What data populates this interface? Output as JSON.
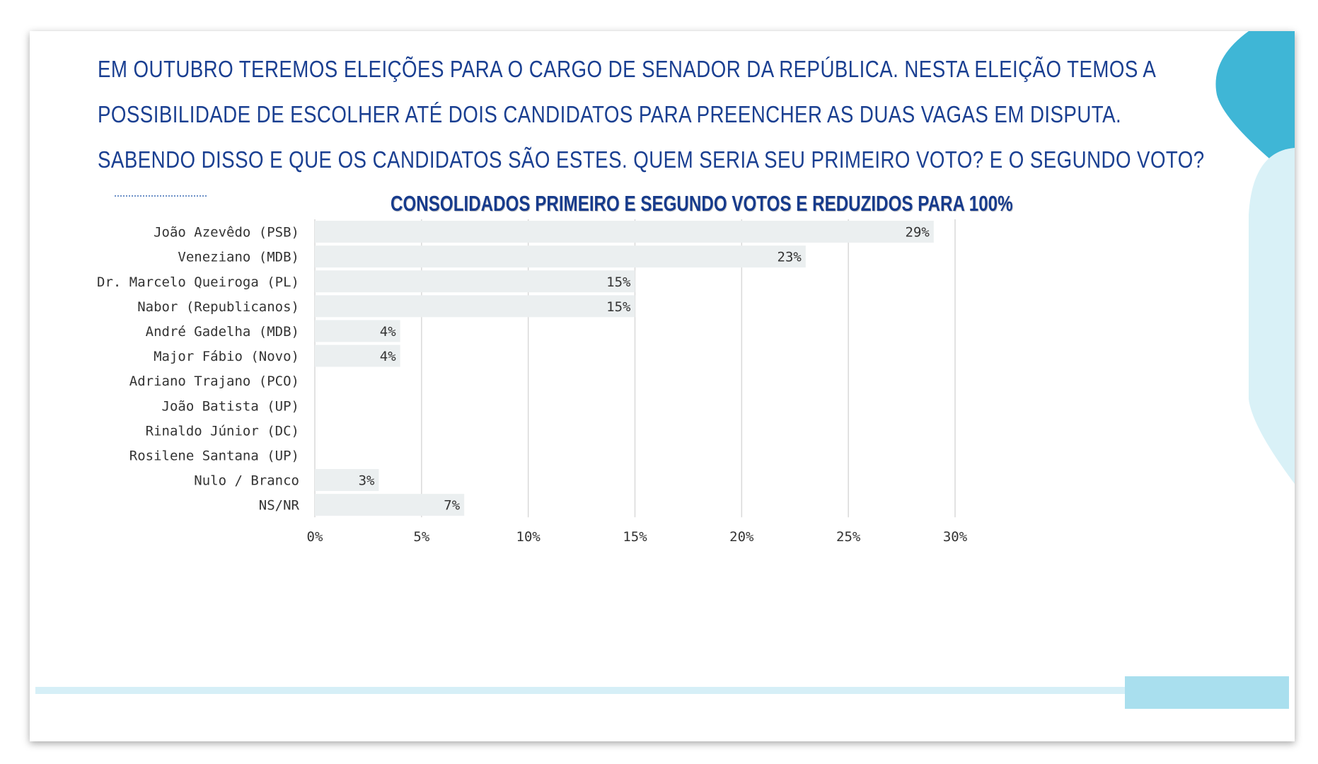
{
  "question_lines": [
    "EM OUTUBRO TEREMOS ELEIÇÕES PARA O CARGO DE SENADOR DA REPÚBLICA. NESTA ELEIÇÃO TEMOS A",
    "POSSIBILIDADE DE ESCOLHER ATÉ DOIS CANDIDATOS PARA PREENCHER AS DUAS VAGAS EM DISPUTA.",
    "SABENDO DISSO E QUE OS CANDIDATOS SÃO ESTES. QUEM SERIA SEU PRIMEIRO VOTO? E O SEGUNDO VOTO?"
  ],
  "colors": {
    "title": "#1a3f91",
    "bar": "#ebeff0",
    "grid": "#d9d9d9",
    "label": "#333333",
    "accent_dark": "#3fb6d6",
    "accent_light": "#d6eff7"
  },
  "chart_data": {
    "type": "bar",
    "orientation": "horizontal",
    "title": "CONSOLIDADOS PRIMEIRO E SEGUNDO VOTOS E REDUZIDOS PARA 100%",
    "categories": [
      "João Azevêdo (PSB)",
      "Veneziano (MDB)",
      "Dr. Marcelo Queiroga (PL)",
      "Nabor (Republicanos)",
      "André Gadelha (MDB)",
      "Major Fábio (Novo)",
      "Adriano Trajano (PCO)",
      "João Batista (UP)",
      "Rinaldo Júnior (DC)",
      "Rosilene Santana (UP)",
      "Nulo / Branco",
      "NS/NR"
    ],
    "values": [
      29,
      23,
      15,
      15,
      4,
      4,
      0,
      0,
      0,
      0,
      3,
      7
    ],
    "data_labels": [
      "29%",
      "23%",
      "15%",
      "15%",
      "4%",
      "4%",
      "",
      "",
      "",
      "",
      "3%",
      "7%"
    ],
    "xlim": [
      0,
      30
    ],
    "x_ticks": [
      "0%",
      "5%",
      "10%",
      "15%",
      "20%",
      "25%",
      "30%"
    ],
    "grid": true
  }
}
